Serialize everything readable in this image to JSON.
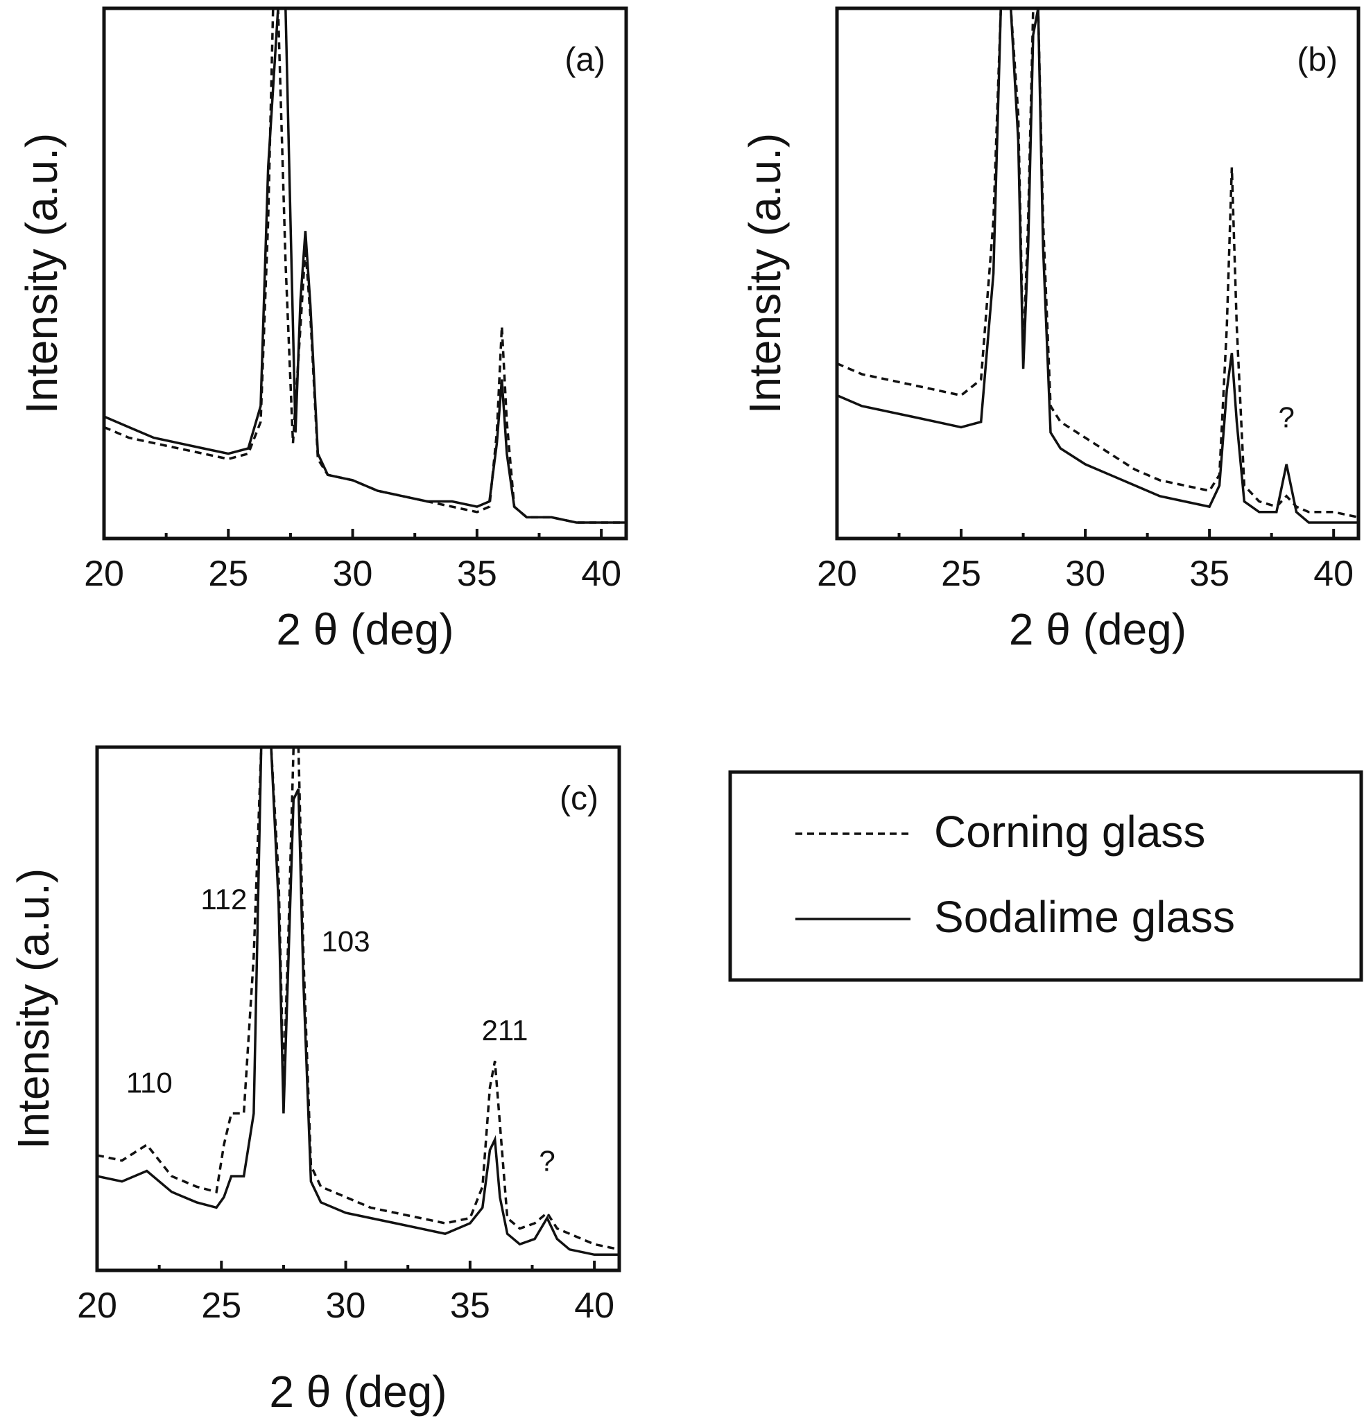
{
  "legend": {
    "entries": [
      {
        "label": "Corning glass",
        "style": "dashed"
      },
      {
        "label": "Sodalime glass",
        "style": "solid"
      }
    ]
  },
  "chart_data": [
    {
      "type": "line",
      "panel_label": "(a)",
      "xlabel": "2 θ (deg)",
      "ylabel": "Intensity (a.u.)",
      "xlim": [
        20,
        41
      ],
      "ylim": [
        0,
        100
      ],
      "xticks": [
        20,
        25,
        30,
        35,
        40
      ],
      "series": [
        {
          "name": "Corning glass",
          "style": "dashed",
          "x": [
            20,
            21,
            22,
            23,
            24,
            25,
            25.8,
            26.3,
            26.6,
            26.8,
            27.0,
            27.3,
            27.6,
            27.9,
            28.1,
            28.3,
            28.6,
            29,
            30,
            31,
            32,
            33,
            34,
            35,
            35.5,
            35.8,
            36.0,
            36.2,
            36.5,
            37,
            38,
            39,
            40,
            41
          ],
          "y": [
            21,
            19,
            18,
            17,
            16,
            15,
            16,
            22,
            60,
            100,
            100,
            52,
            18,
            40,
            55,
            42,
            15,
            12,
            11,
            9,
            8,
            7,
            6,
            5,
            6,
            20,
            40,
            22,
            6,
            4,
            4,
            3,
            3,
            3
          ]
        },
        {
          "name": "Sodalime glass",
          "style": "solid",
          "x": [
            20,
            21,
            22,
            23,
            24,
            25,
            25.8,
            26.3,
            26.6,
            27.0,
            27.3,
            27.5,
            27.7,
            27.9,
            28.1,
            28.3,
            28.6,
            29,
            30,
            31,
            32,
            33,
            34,
            35,
            35.5,
            35.8,
            36.0,
            36.2,
            36.5,
            37,
            38,
            39,
            40,
            41
          ],
          "y": [
            23,
            21,
            19,
            18,
            17,
            16,
            17,
            25,
            70,
            100,
            100,
            60,
            20,
            45,
            58,
            44,
            16,
            12,
            11,
            9,
            8,
            7,
            7,
            6,
            7,
            18,
            30,
            16,
            6,
            4,
            4,
            3,
            3,
            3
          ]
        }
      ]
    },
    {
      "type": "line",
      "panel_label": "(b)",
      "xlabel": "2 θ (deg)",
      "ylabel": "Intensity (a.u.)",
      "xlim": [
        20,
        41
      ],
      "ylim": [
        0,
        100
      ],
      "xticks": [
        20,
        25,
        30,
        35,
        40
      ],
      "annotations": [
        {
          "text": "?",
          "x": 38.1,
          "y": 21
        }
      ],
      "series": [
        {
          "name": "Corning glass",
          "style": "dashed",
          "x": [
            20,
            21,
            22,
            23,
            24,
            25,
            25.8,
            26.3,
            26.6,
            27.0,
            27.3,
            27.5,
            27.7,
            27.9,
            28.1,
            28.3,
            28.6,
            29,
            30,
            31,
            32,
            33,
            34,
            35,
            35.4,
            35.7,
            35.9,
            36.1,
            36.4,
            37,
            37.7,
            38.1,
            38.5,
            39,
            40,
            41
          ],
          "y": [
            33,
            31,
            30,
            29,
            28,
            27,
            30,
            60,
            100,
            100,
            80,
            34,
            60,
            100,
            100,
            60,
            25,
            22,
            19,
            16,
            13,
            11,
            10,
            9,
            12,
            40,
            70,
            40,
            10,
            7,
            6,
            8,
            6,
            5,
            5,
            4
          ]
        },
        {
          "name": "Sodalime glass",
          "style": "solid",
          "x": [
            20,
            21,
            22,
            23,
            24,
            25,
            25.8,
            26.3,
            26.6,
            27.0,
            27.3,
            27.5,
            27.7,
            27.9,
            28.1,
            28.3,
            28.6,
            29,
            30,
            31,
            32,
            33,
            34,
            35,
            35.4,
            35.7,
            35.9,
            36.1,
            36.4,
            37,
            37.7,
            38.1,
            38.5,
            39,
            40,
            41
          ],
          "y": [
            27,
            25,
            24,
            23,
            22,
            21,
            22,
            50,
            100,
            100,
            75,
            32,
            55,
            95,
            100,
            55,
            20,
            17,
            14,
            12,
            10,
            8,
            7,
            6,
            10,
            28,
            35,
            22,
            7,
            5,
            5,
            14,
            5,
            3,
            3,
            3
          ]
        }
      ]
    },
    {
      "type": "line",
      "panel_label": "(c)",
      "xlabel": "2 θ (deg)",
      "ylabel": "Intensity (a.u.)",
      "xlim": [
        20,
        41
      ],
      "ylim": [
        0,
        100
      ],
      "xticks": [
        20,
        25,
        30,
        35,
        40
      ],
      "annotations": [
        {
          "text": "110",
          "x": 22.1,
          "y": 34
        },
        {
          "text": "112",
          "x": 25.1,
          "y": 69
        },
        {
          "text": "103",
          "x": 30.0,
          "y": 61
        },
        {
          "text": "211",
          "x": 36.4,
          "y": 44
        },
        {
          "text": "?",
          "x": 38.1,
          "y": 19
        }
      ],
      "series": [
        {
          "name": "Corning glass",
          "style": "dashed",
          "x": [
            20,
            21,
            22,
            23,
            24,
            24.8,
            25.1,
            25.4,
            25.9,
            26.3,
            26.6,
            27.0,
            27.3,
            27.5,
            27.7,
            27.9,
            28.1,
            28.3,
            28.6,
            29,
            30,
            31,
            32,
            33,
            34,
            35,
            35.5,
            35.8,
            36.0,
            36.2,
            36.5,
            37,
            37.6,
            38.1,
            38.5,
            39,
            40,
            41
          ],
          "y": [
            22,
            21,
            24,
            18,
            16,
            15,
            24,
            30,
            30,
            60,
            100,
            100,
            75,
            35,
            65,
            100,
            100,
            60,
            20,
            16,
            14,
            12,
            11,
            10,
            9,
            10,
            16,
            35,
            40,
            28,
            10,
            8,
            9,
            11,
            8,
            7,
            5,
            4
          ]
        },
        {
          "name": "Sodalime glass",
          "style": "solid",
          "x": [
            20,
            21,
            22,
            23,
            24,
            24.8,
            25.1,
            25.4,
            25.9,
            26.3,
            26.6,
            27.0,
            27.3,
            27.5,
            27.7,
            27.9,
            28.1,
            28.3,
            28.6,
            29,
            30,
            31,
            32,
            33,
            34,
            35,
            35.5,
            35.8,
            36.0,
            36.2,
            36.5,
            37,
            37.6,
            38.1,
            38.5,
            39,
            40,
            41
          ],
          "y": [
            18,
            17,
            19,
            15,
            13,
            12,
            14,
            18,
            18,
            30,
            100,
            100,
            70,
            30,
            60,
            90,
            92,
            55,
            17,
            13,
            11,
            10,
            9,
            8,
            7,
            9,
            12,
            23,
            25,
            14,
            7,
            5,
            6,
            10,
            6,
            4,
            3,
            3
          ]
        }
      ]
    }
  ]
}
